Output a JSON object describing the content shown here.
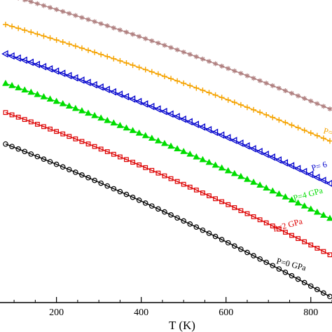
{
  "chart_data": {
    "type": "line",
    "xlabel": "T (K)",
    "ylabel": "",
    "xlim": [
      80,
      850
    ],
    "ylim": [
      0,
      100
    ],
    "x_ticks": [
      200,
      400,
      600,
      800
    ],
    "x": [
      80,
      95,
      110,
      125,
      140,
      155,
      170,
      185,
      200,
      215,
      230,
      245,
      260,
      275,
      290,
      305,
      320,
      335,
      350,
      365,
      380,
      395,
      410,
      425,
      440,
      455,
      470,
      485,
      500,
      515,
      530,
      545,
      560,
      575,
      590,
      605,
      620,
      635,
      650,
      665,
      680,
      695,
      710,
      725,
      740,
      755,
      770,
      785,
      800,
      815,
      830,
      845
    ],
    "series": [
      {
        "name": "P=0 GPa",
        "label": "P=0 GPa",
        "color": "#000000",
        "marker": "circle",
        "start": 52.4,
        "end": 2.0
      },
      {
        "name": "P=2 GPa",
        "label": "P=2 GPa",
        "color": "#dd0000",
        "marker": "square",
        "start": 62.8,
        "end": 15.8
      },
      {
        "name": "P=4 GPa",
        "label": "P=4 GPa",
        "color": "#00dd00",
        "marker": "triangle-up",
        "start": 72.4,
        "end": 27.8
      },
      {
        "name": "P= 6",
        "label": "P= 6",
        "color": "#0000cc",
        "marker": "triangle-left",
        "start": 82.2,
        "end": 39.4
      },
      {
        "name": "P=",
        "label": "P=",
        "color": "#f5a300",
        "marker": "plus",
        "start": 91.9,
        "end": 53.4
      },
      {
        "name": "",
        "label": "",
        "color": "#b08080",
        "marker": "star",
        "start": 101.9,
        "end": 64.0
      }
    ]
  }
}
